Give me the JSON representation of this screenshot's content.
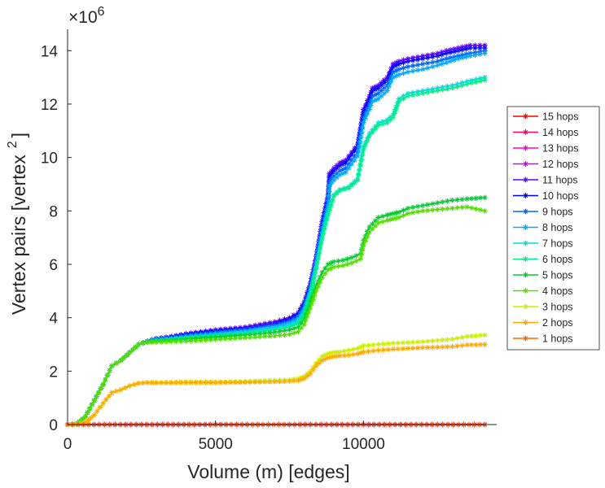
{
  "chart_data": {
    "type": "line",
    "title": "",
    "xlabel": "Volume (m) [edges]",
    "ylabel": "Vertex pairs [vertex",
    "ylabel_superscript": "2",
    "ylabel_close": "]",
    "y_multiplier_base": "×10",
    "y_multiplier_exp": "6",
    "xlim": [
      0,
      14500
    ],
    "ylim": [
      0,
      14.8
    ],
    "xticks": [
      0,
      5000,
      10000
    ],
    "xtick_labels": [
      "0",
      "5000",
      "10000"
    ],
    "yticks": [
      0,
      2,
      4,
      6,
      8,
      10,
      12,
      14
    ],
    "ytick_labels": [
      "0",
      "2",
      "4",
      "6",
      "8",
      "10",
      "12",
      "14"
    ],
    "grid": false,
    "legend_position": "right",
    "marker": "asterisk",
    "series": [
      {
        "name": "15 hops",
        "color": "#ff0000",
        "x": [
          0,
          14100
        ],
        "y": [
          0,
          0
        ]
      },
      {
        "name": "14 hops",
        "color": "#ff0066",
        "x": [
          0,
          14100
        ],
        "y": [
          0,
          0
        ]
      },
      {
        "name": "13 hops",
        "color": "#ff00cc",
        "x": [
          0,
          14100
        ],
        "y": [
          0,
          0
        ]
      },
      {
        "name": "12 hops",
        "color": "#cc00ff",
        "x": [
          0,
          14100
        ],
        "y": [
          0,
          0
        ]
      },
      {
        "name": "11 hops",
        "color": "#6600ff",
        "x": [
          0,
          300,
          600,
          900,
          1200,
          1500,
          1800,
          2100,
          2400,
          2700,
          3000,
          3500,
          4000,
          5000,
          6000,
          7000,
          7500,
          7800,
          8000,
          8200,
          8400,
          8600,
          8800,
          8850,
          9000,
          9200,
          9400,
          9600,
          9800,
          10000,
          10200,
          10300,
          10500,
          10600,
          10800,
          11000,
          11200,
          11500,
          12000,
          12500,
          12800,
          13200,
          13600,
          14100
        ],
        "y": [
          0,
          0.02,
          0.3,
          0.9,
          1.5,
          2.2,
          2.4,
          2.7,
          3.0,
          3.12,
          3.22,
          3.3,
          3.4,
          3.55,
          3.65,
          3.85,
          4.0,
          4.2,
          4.6,
          5.3,
          6.3,
          7.6,
          8.6,
          9.4,
          9.6,
          9.8,
          9.9,
          10.2,
          10.5,
          11.8,
          12.3,
          12.6,
          12.7,
          12.8,
          13.0,
          13.5,
          13.6,
          13.7,
          13.8,
          13.9,
          14.0,
          14.1,
          14.2,
          14.2
        ]
      },
      {
        "name": "10 hops",
        "color": "#0000ff",
        "x": [
          0,
          300,
          600,
          900,
          1200,
          1500,
          1800,
          2100,
          2400,
          2700,
          3000,
          3500,
          4000,
          5000,
          6000,
          7000,
          7500,
          7800,
          8000,
          8200,
          8400,
          8600,
          8800,
          8850,
          9000,
          9200,
          9400,
          9600,
          9800,
          10000,
          10200,
          10300,
          10500,
          10600,
          10800,
          11000,
          11200,
          11500,
          12000,
          12500,
          12800,
          13200,
          13600,
          14100
        ],
        "y": [
          0,
          0.02,
          0.3,
          0.9,
          1.5,
          2.2,
          2.4,
          2.7,
          3.0,
          3.12,
          3.22,
          3.28,
          3.38,
          3.5,
          3.6,
          3.78,
          3.95,
          4.15,
          4.55,
          5.2,
          6.2,
          7.5,
          8.5,
          9.3,
          9.5,
          9.7,
          9.8,
          10.1,
          10.4,
          11.7,
          12.2,
          12.5,
          12.6,
          12.7,
          12.9,
          13.4,
          13.5,
          13.6,
          13.7,
          13.8,
          13.9,
          14.0,
          14.1,
          14.1
        ]
      },
      {
        "name": "9 hops",
        "color": "#0066ff",
        "x": [
          0,
          300,
          600,
          900,
          1200,
          1500,
          1800,
          2100,
          2400,
          2700,
          3000,
          3500,
          4000,
          5000,
          6000,
          7000,
          7500,
          7800,
          8000,
          8200,
          8400,
          8600,
          8800,
          8850,
          9000,
          9200,
          9400,
          9600,
          9800,
          10000,
          10200,
          10300,
          10500,
          10600,
          10800,
          11000,
          11200,
          11500,
          12000,
          12500,
          12800,
          13200,
          13600,
          14100
        ],
        "y": [
          0,
          0.02,
          0.3,
          0.9,
          1.5,
          2.2,
          2.4,
          2.7,
          3.0,
          3.12,
          3.2,
          3.25,
          3.33,
          3.45,
          3.55,
          3.72,
          3.88,
          4.05,
          4.45,
          5.1,
          6.1,
          7.35,
          8.35,
          9.1,
          9.3,
          9.5,
          9.6,
          9.9,
          10.2,
          11.5,
          12.0,
          12.3,
          12.4,
          12.5,
          12.7,
          13.2,
          13.3,
          13.4,
          13.5,
          13.6,
          13.7,
          13.8,
          13.9,
          14.0
        ]
      },
      {
        "name": "8 hops",
        "color": "#00aaff",
        "x": [
          0,
          300,
          600,
          900,
          1200,
          1500,
          1800,
          2100,
          2400,
          2700,
          3000,
          3500,
          4000,
          5000,
          6000,
          7000,
          7500,
          7800,
          8000,
          8200,
          8400,
          8600,
          8800,
          8850,
          9000,
          9200,
          9400,
          9600,
          9800,
          10000,
          10200,
          10300,
          10500,
          10600,
          10800,
          11000,
          11200,
          11500,
          12000,
          12500,
          12800,
          13200,
          13600,
          14100
        ],
        "y": [
          0,
          0.02,
          0.3,
          0.9,
          1.5,
          2.2,
          2.4,
          2.7,
          3.0,
          3.1,
          3.18,
          3.22,
          3.3,
          3.4,
          3.5,
          3.65,
          3.8,
          3.95,
          4.35,
          5.0,
          6.0,
          7.2,
          8.2,
          8.95,
          9.15,
          9.35,
          9.45,
          9.75,
          10.05,
          11.3,
          11.8,
          12.1,
          12.2,
          12.3,
          12.5,
          13.0,
          13.1,
          13.2,
          13.3,
          13.45,
          13.55,
          13.7,
          13.8,
          13.9
        ]
      },
      {
        "name": "7 hops",
        "color": "#00dddd",
        "x": [
          0,
          300,
          600,
          900,
          1200,
          1500,
          1800,
          2100,
          2400,
          2700,
          3000,
          3500,
          4000,
          5000,
          6000,
          7000,
          7500,
          7800,
          8000,
          8200,
          8400,
          8600,
          8800,
          9000,
          9200,
          9500,
          9800,
          10000,
          10200,
          10500,
          10800,
          11000,
          11200,
          11500,
          12000,
          12500,
          13000,
          13500,
          14100
        ],
        "y": [
          0,
          0.02,
          0.3,
          0.9,
          1.5,
          2.2,
          2.4,
          2.7,
          3.0,
          3.1,
          3.15,
          3.2,
          3.25,
          3.35,
          3.45,
          3.6,
          3.72,
          3.85,
          4.2,
          4.9,
          5.9,
          7.0,
          7.9,
          8.6,
          8.8,
          8.9,
          9.2,
          10.4,
          10.9,
          11.3,
          11.4,
          11.6,
          12.2,
          12.4,
          12.5,
          12.6,
          12.7,
          12.85,
          13.0
        ]
      },
      {
        "name": "6 hops",
        "color": "#00ee88",
        "x": [
          0,
          300,
          600,
          900,
          1200,
          1500,
          1800,
          2100,
          2400,
          2700,
          3000,
          3500,
          4000,
          5000,
          6000,
          7000,
          7500,
          7800,
          8000,
          8200,
          8400,
          8600,
          8800,
          9000,
          9200,
          9500,
          9800,
          10000,
          10200,
          10500,
          10800,
          11000,
          11200,
          11500,
          12000,
          12500,
          13000,
          13500,
          14100
        ],
        "y": [
          0,
          0.02,
          0.3,
          0.9,
          1.5,
          2.2,
          2.4,
          2.7,
          3.0,
          3.1,
          3.13,
          3.17,
          3.22,
          3.3,
          3.4,
          3.55,
          3.66,
          3.8,
          4.15,
          4.85,
          5.85,
          6.95,
          7.85,
          8.55,
          8.75,
          8.85,
          9.15,
          10.3,
          10.8,
          11.2,
          11.3,
          11.5,
          12.1,
          12.3,
          12.4,
          12.5,
          12.6,
          12.75,
          12.9
        ]
      },
      {
        "name": "5 hops",
        "color": "#00cc33",
        "x": [
          0,
          300,
          600,
          900,
          1200,
          1500,
          1800,
          2100,
          2400,
          2700,
          3000,
          3500,
          4000,
          5000,
          6000,
          7000,
          7500,
          7800,
          8000,
          8200,
          8400,
          8600,
          8800,
          9000,
          9300,
          9600,
          9900,
          10000,
          10200,
          10500,
          10800,
          11000,
          11200,
          11500,
          12000,
          12500,
          13000,
          13500,
          14100
        ],
        "y": [
          0,
          0.02,
          0.3,
          0.9,
          1.5,
          2.2,
          2.4,
          2.7,
          3.0,
          3.1,
          3.12,
          3.15,
          3.2,
          3.27,
          3.35,
          3.45,
          3.55,
          3.65,
          3.95,
          4.6,
          5.2,
          5.7,
          6.0,
          6.1,
          6.15,
          6.25,
          6.4,
          6.9,
          7.4,
          7.75,
          7.85,
          7.9,
          7.95,
          8.1,
          8.2,
          8.3,
          8.4,
          8.45,
          8.5
        ]
      },
      {
        "name": "4 hops",
        "color": "#55dd00",
        "x": [
          0,
          300,
          600,
          900,
          1200,
          1500,
          1800,
          2100,
          2400,
          2700,
          3000,
          3500,
          4000,
          5000,
          6000,
          7000,
          7500,
          7800,
          8000,
          8200,
          8400,
          8600,
          8800,
          9000,
          9300,
          9600,
          9900,
          10000,
          10200,
          10500,
          10800,
          11000,
          11200,
          11500,
          12000,
          12500,
          13000,
          13500,
          14100
        ],
        "y": [
          0,
          0.02,
          0.3,
          0.9,
          1.5,
          2.2,
          2.4,
          2.7,
          3.0,
          3.08,
          3.08,
          3.1,
          3.12,
          3.18,
          3.25,
          3.32,
          3.38,
          3.48,
          3.75,
          4.35,
          5.0,
          5.5,
          5.8,
          5.9,
          5.95,
          6.05,
          6.2,
          6.7,
          7.2,
          7.55,
          7.65,
          7.7,
          7.75,
          7.9,
          8.0,
          8.05,
          8.1,
          8.15,
          8.0
        ]
      },
      {
        "name": "3 hops",
        "color": "#ccee00",
        "x": [
          0,
          300,
          600,
          900,
          1200,
          1500,
          1800,
          2100,
          2400,
          2700,
          3000,
          4000,
          5000,
          6000,
          7000,
          7500,
          7800,
          8000,
          8200,
          8400,
          8600,
          8800,
          9000,
          9200,
          9500,
          9800,
          10000,
          10500,
          11000,
          11500,
          12000,
          12500,
          13000,
          13500,
          14100
        ],
        "y": [
          0,
          0.01,
          0.08,
          0.35,
          0.8,
          1.2,
          1.3,
          1.45,
          1.55,
          1.58,
          1.58,
          1.6,
          1.6,
          1.62,
          1.65,
          1.68,
          1.72,
          1.8,
          2.0,
          2.3,
          2.55,
          2.65,
          2.7,
          2.72,
          2.78,
          2.85,
          2.95,
          3.0,
          3.05,
          3.07,
          3.1,
          3.15,
          3.2,
          3.3,
          3.35
        ]
      },
      {
        "name": "2 hops",
        "color": "#ffaa00",
        "x": [
          0,
          300,
          600,
          900,
          1200,
          1500,
          1800,
          2100,
          2400,
          2700,
          3000,
          4000,
          5000,
          6000,
          7000,
          7500,
          7800,
          8000,
          8200,
          8400,
          8600,
          8800,
          9000,
          9200,
          9500,
          9800,
          10000,
          10500,
          11000,
          11500,
          12000,
          12500,
          13000,
          13500,
          14100
        ],
        "y": [
          0,
          0.01,
          0.08,
          0.35,
          0.8,
          1.2,
          1.3,
          1.45,
          1.55,
          1.57,
          1.56,
          1.57,
          1.57,
          1.58,
          1.6,
          1.62,
          1.65,
          1.72,
          1.9,
          2.2,
          2.4,
          2.5,
          2.55,
          2.57,
          2.6,
          2.65,
          2.72,
          2.78,
          2.82,
          2.85,
          2.88,
          2.9,
          2.92,
          2.98,
          3.0
        ]
      },
      {
        "name": "1 hops",
        "color": "#ff6600",
        "x": [
          0,
          14100
        ],
        "y": [
          0,
          0
        ]
      }
    ]
  }
}
